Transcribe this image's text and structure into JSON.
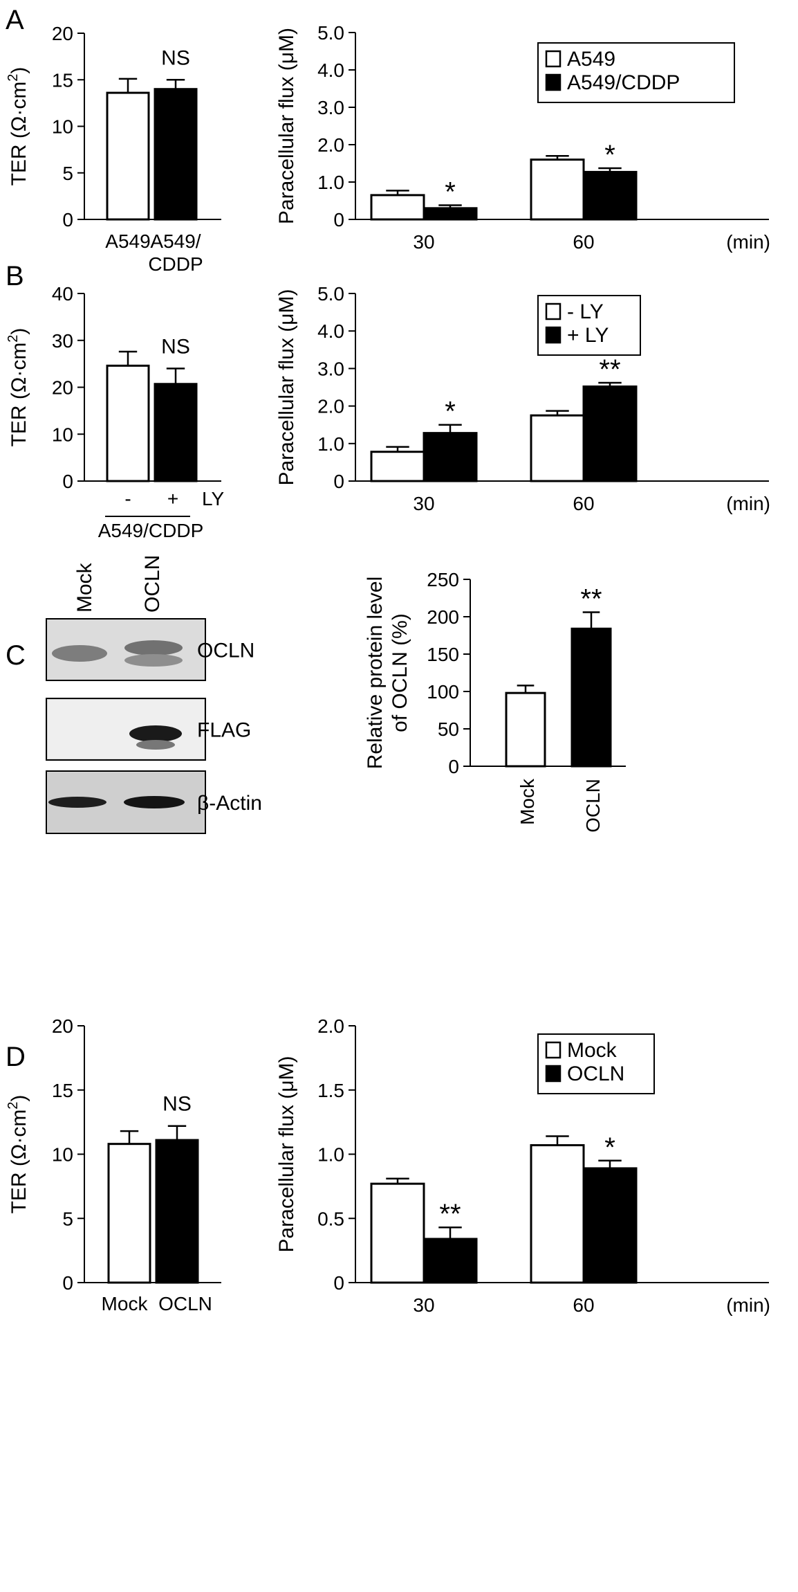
{
  "panels": [
    {
      "id": "A",
      "label": "A"
    },
    {
      "id": "B",
      "label": "B"
    },
    {
      "id": "C",
      "label": "C"
    },
    {
      "id": "D",
      "label": "D"
    }
  ],
  "blot": {
    "lanes": [
      "Mock",
      "OCLN"
    ],
    "rows": [
      "OCLN",
      "FLAG",
      "β-Actin"
    ]
  },
  "chart_data": [
    {
      "panel": "A",
      "type": "bar",
      "ylabel": "TER (Ω·cm²)",
      "ylim": [
        0,
        20
      ],
      "yticks": [
        "0",
        "5",
        "10",
        "15",
        "20"
      ],
      "categories": [
        "A549",
        "A549/CDDP"
      ],
      "category_lines": [
        [
          "A549"
        ],
        [
          "A549/",
          "CDDP"
        ]
      ],
      "values": [
        13.6,
        14.0
      ],
      "errors": [
        1.5,
        1.0
      ],
      "fills": [
        "#ffffff",
        "#000000"
      ],
      "annotations": [
        "",
        "NS"
      ]
    },
    {
      "panel": "A",
      "type": "bar",
      "ylabel": "Paracellular flux (μM)",
      "ylim": [
        0,
        5
      ],
      "yticks": [
        "0",
        "1.0",
        "2.0",
        "3.0",
        "4.0",
        "5.0"
      ],
      "categories": [
        "30",
        "60"
      ],
      "unit": "(min)",
      "series": [
        {
          "name": "A549",
          "values": [
            0.65,
            1.6
          ],
          "errors": [
            0.12,
            0.1
          ],
          "fill": "#ffffff",
          "annotations": [
            "",
            ""
          ]
        },
        {
          "name": "A549/CDDP",
          "values": [
            0.3,
            1.27
          ],
          "errors": [
            0.08,
            0.1
          ],
          "fill": "#000000",
          "annotations": [
            "*",
            "*"
          ]
        }
      ],
      "legend": "top-right"
    },
    {
      "panel": "B",
      "type": "bar",
      "ylabel": "TER (Ω·cm²)",
      "ylim": [
        0,
        40
      ],
      "yticks": [
        "0",
        "10",
        "20",
        "30",
        "40"
      ],
      "categories": [
        "-",
        "+"
      ],
      "extra_label": "LY",
      "group_label": "A549/CDDP",
      "values": [
        24.6,
        20.7
      ],
      "errors": [
        3.0,
        3.3
      ],
      "fills": [
        "#ffffff",
        "#000000"
      ],
      "annotations": [
        "",
        "NS"
      ]
    },
    {
      "panel": "B",
      "type": "bar",
      "ylabel": "Paracellular flux (μM)",
      "ylim": [
        0,
        5
      ],
      "yticks": [
        "0",
        "1.0",
        "2.0",
        "3.0",
        "4.0",
        "5.0"
      ],
      "categories": [
        "30",
        "60"
      ],
      "unit": "(min)",
      "series": [
        {
          "name": "- LY",
          "values": [
            0.78,
            1.75
          ],
          "errors": [
            0.13,
            0.12
          ],
          "fill": "#ffffff",
          "annotations": [
            "",
            ""
          ]
        },
        {
          "name": "+ LY",
          "values": [
            1.28,
            2.52
          ],
          "errors": [
            0.22,
            0.1
          ],
          "fill": "#000000",
          "annotations": [
            "*",
            "**"
          ]
        }
      ],
      "legend": "top-right"
    },
    {
      "panel": "C",
      "type": "bar",
      "ylabel_lines": [
        "Relative protein level",
        "of OCLN (%)"
      ],
      "ylim": [
        0,
        250
      ],
      "yticks": [
        "0",
        "50",
        "100",
        "150",
        "200",
        "250"
      ],
      "categories": [
        "Mock",
        "OCLN"
      ],
      "values": [
        98,
        184
      ],
      "errors": [
        10,
        22
      ],
      "fills": [
        "#ffffff",
        "#000000"
      ],
      "annotations": [
        "",
        "**"
      ]
    },
    {
      "panel": "D",
      "type": "bar",
      "ylabel": "TER (Ω·cm²)",
      "ylim": [
        0,
        20
      ],
      "yticks": [
        "0",
        "5",
        "10",
        "15",
        "20"
      ],
      "categories": [
        "Mock",
        "OCLN"
      ],
      "values": [
        10.8,
        11.1
      ],
      "errors": [
        1.0,
        1.1
      ],
      "fills": [
        "#ffffff",
        "#000000"
      ],
      "annotations": [
        "",
        "NS"
      ]
    },
    {
      "panel": "D",
      "type": "bar",
      "ylabel": "Paracellular flux (μM)",
      "ylim": [
        0,
        2.0
      ],
      "yticks": [
        "0",
        "0.5",
        "1.0",
        "1.5",
        "2.0"
      ],
      "categories": [
        "30",
        "60"
      ],
      "unit": "(min)",
      "series": [
        {
          "name": "Mock",
          "values": [
            0.77,
            1.07
          ],
          "errors": [
            0.04,
            0.07
          ],
          "fill": "#ffffff",
          "annotations": [
            "",
            ""
          ]
        },
        {
          "name": "OCLN",
          "values": [
            0.34,
            0.89
          ],
          "errors": [
            0.09,
            0.06
          ],
          "fill": "#000000",
          "annotations": [
            "**",
            "*"
          ]
        }
      ],
      "legend": "top-right"
    }
  ]
}
